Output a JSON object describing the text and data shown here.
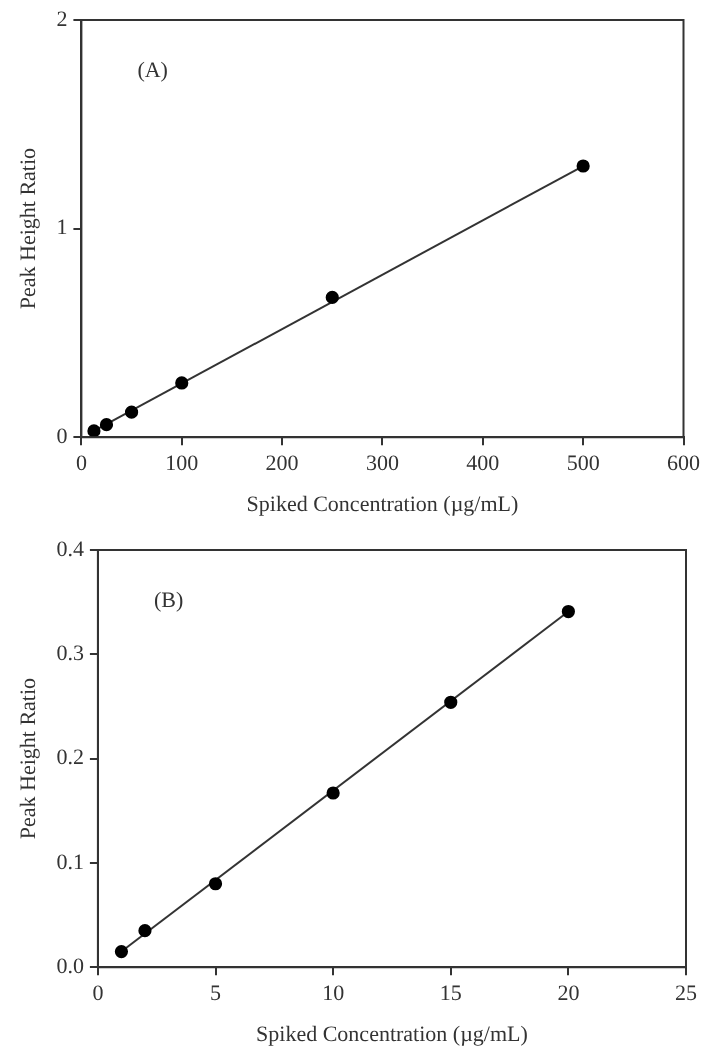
{
  "chart_data": [
    {
      "type": "scatter",
      "annotations": [
        "(A)"
      ],
      "xlabel": "Spiked Concentration (µg/mL)",
      "ylabel": "Peak Height Ratio",
      "x": [
        12.5,
        25,
        50,
        100,
        250,
        500
      ],
      "xlim": [
        0,
        600
      ],
      "xticks": [
        0,
        100,
        200,
        300,
        400,
        500,
        600
      ],
      "ylim": [
        0,
        2
      ],
      "yticks": [
        0,
        1,
        2
      ],
      "grid": false,
      "legend": false,
      "series": [
        {
          "color": "#000000",
          "marker": "circle",
          "values": [
            0.03,
            0.06,
            0.12,
            0.26,
            0.67,
            1.3
          ]
        },
        {
          "type": "line",
          "color": "#333333",
          "line_style": "solid",
          "x": [
            12.5,
            500
          ],
          "values": [
            0.03,
            1.3
          ]
        }
      ]
    },
    {
      "type": "scatter",
      "annotations": [
        "(B)"
      ],
      "xlabel": "Spiked Concentration (µg/mL)",
      "ylabel": "Peak Height Ratio",
      "x": [
        1,
        2,
        5,
        10,
        15,
        20
      ],
      "xlim": [
        0,
        25
      ],
      "xticks": [
        0,
        5,
        10,
        15,
        20,
        25
      ],
      "ylim": [
        0,
        0.4
      ],
      "yticks": [
        {
          "value": 0,
          "label": "0.0"
        },
        0.1,
        0.2,
        0.3,
        0.4
      ],
      "grid": false,
      "legend": false,
      "series": [
        {
          "color": "#000000",
          "marker": "circle",
          "values": [
            0.015,
            0.035,
            0.08,
            0.167,
            0.254,
            0.341
          ]
        },
        {
          "type": "line",
          "color": "#333333",
          "line_style": "solid",
          "x": [
            1,
            20
          ],
          "values": [
            0.015,
            0.341
          ]
        }
      ]
    }
  ]
}
